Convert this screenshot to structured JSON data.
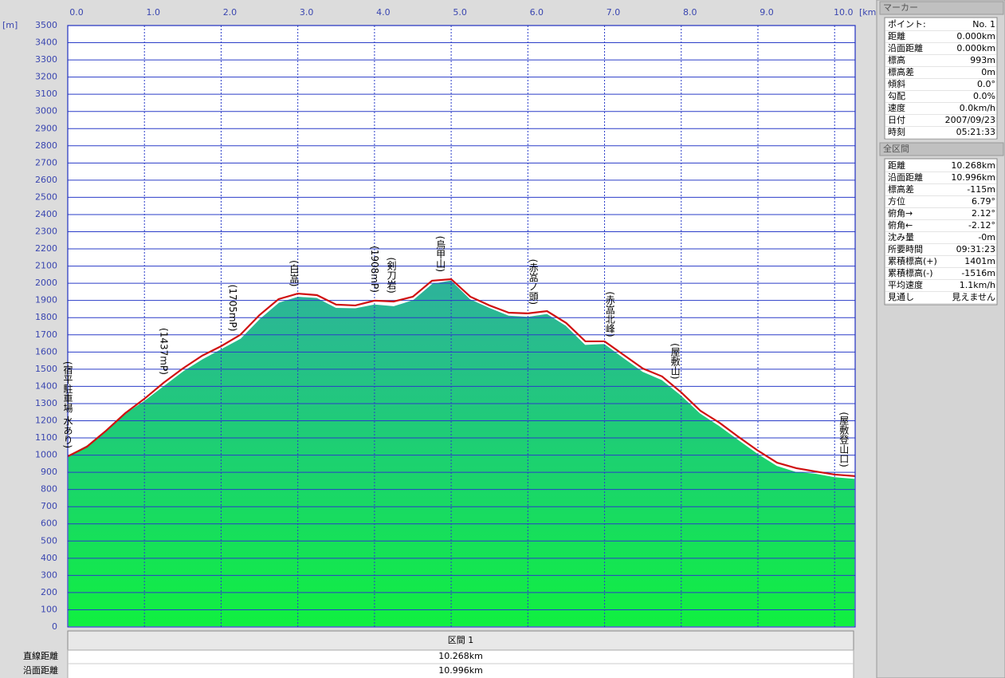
{
  "chart_data": {
    "type": "area",
    "x_unit": "[km]",
    "y_unit": "[m]",
    "x": [
      0,
      0.25,
      0.5,
      0.75,
      1.0,
      1.25,
      1.5,
      1.75,
      2.0,
      2.25,
      2.5,
      2.75,
      3.0,
      3.25,
      3.5,
      3.75,
      4.0,
      4.25,
      4.5,
      4.75,
      5.0,
      5.25,
      5.5,
      5.75,
      6.0,
      6.25,
      6.5,
      6.75,
      7.0,
      7.25,
      7.5,
      7.75,
      8.0,
      8.25,
      8.5,
      8.75,
      9.0,
      9.25,
      9.5,
      9.75,
      10.0,
      10.268
    ],
    "series": [
      {
        "color": "#2db39a",
        "values": [
          1000,
          1060,
          1150,
          1245,
          1320,
          1405,
          1490,
          1560,
          1620,
          1680,
          1795,
          1890,
          1925,
          1918,
          1860,
          1858,
          1880,
          1870,
          1905,
          2000,
          2020,
          1910,
          1860,
          1815,
          1808,
          1825,
          1755,
          1645,
          1650,
          1568,
          1488,
          1440,
          1350,
          1245,
          1172,
          1090,
          1010,
          940,
          905,
          895,
          875,
          865
        ]
      },
      {
        "color": "#d01010",
        "values": [
          993,
          1049,
          1142,
          1244,
          1328,
          1421,
          1504,
          1578,
          1634,
          1700,
          1815,
          1908,
          1940,
          1931,
          1876,
          1871,
          1899,
          1894,
          1922,
          2015,
          2024,
          1922,
          1871,
          1829,
          1825,
          1838,
          1769,
          1662,
          1662,
          1583,
          1504,
          1458,
          1365,
          1258,
          1188,
          1105,
          1026,
          956,
          924,
          905,
          887,
          878
        ]
      }
    ],
    "xlim": [
      0,
      10.268
    ],
    "xticks": [
      {
        "value": 0,
        "label": "0.0"
      },
      {
        "value": 1,
        "label": "1.0"
      },
      {
        "value": 2,
        "label": "2.0"
      },
      {
        "value": 3,
        "label": "3.0"
      },
      {
        "value": 4,
        "label": "4.0"
      },
      {
        "value": 5,
        "label": "5.0"
      },
      {
        "value": 6,
        "label": "6.0"
      },
      {
        "value": 7,
        "label": "7.0"
      },
      {
        "value": 8,
        "label": "8.0"
      },
      {
        "value": 9,
        "label": "9.0"
      },
      {
        "value": 10,
        "label": "10.0"
      }
    ],
    "ylim": [
      0,
      3500
    ],
    "yticks": [
      0,
      100,
      200,
      300,
      400,
      500,
      600,
      700,
      800,
      900,
      1000,
      1100,
      1200,
      1300,
      1400,
      1500,
      1600,
      1700,
      1800,
      1900,
      2000,
      2100,
      2200,
      2300,
      2400,
      2500,
      2600,
      2700,
      2800,
      2900,
      3000,
      3100,
      3200,
      3300,
      3400,
      3500
    ],
    "grid": true,
    "annotations": [
      {
        "text": "(宿平駐車場 水あり)",
        "x": 0
      },
      {
        "text": "(1437mP)",
        "x": 1.25
      },
      {
        "text": "(1705mP)",
        "x": 2.15
      },
      {
        "text": "(白嵓)",
        "x": 2.95
      },
      {
        "text": "(1908mP)",
        "x": 4.0
      },
      {
        "text": "(剣刀岩)",
        "x": 4.22
      },
      {
        "text": "(烏甲山)",
        "x": 4.86
      },
      {
        "text": "(赤嵓ノ頭)",
        "x": 6.07
      },
      {
        "text": "(赤嵓北峰)",
        "x": 7.07
      },
      {
        "text": "(屋敷山)",
        "x": 7.92
      },
      {
        "text": "(屋敷登山口)",
        "x": 10.12
      }
    ]
  },
  "marker_panel": {
    "title": "マーカー",
    "rows": [
      [
        "ポイント:",
        "No. 1"
      ],
      [
        "距離",
        "0.000km"
      ],
      [
        "沿面距離",
        "0.000km"
      ],
      [
        "標高",
        "993m"
      ],
      [
        "標高差",
        "0m"
      ],
      [
        "傾斜",
        "0.0°"
      ],
      [
        "勾配",
        "0.0%"
      ],
      [
        "速度",
        "0.0km/h"
      ],
      [
        "日付",
        "2007/09/23"
      ],
      [
        "時刻",
        "05:21:33"
      ]
    ]
  },
  "total_panel": {
    "title": "全区間",
    "rows": [
      [
        "距離",
        "10.268km"
      ],
      [
        "沿面距離",
        "10.996km"
      ],
      [
        "標高差",
        "-115m"
      ],
      [
        "方位",
        "6.79°"
      ],
      [
        "俯角→",
        "2.12°"
      ],
      [
        "俯角←",
        "-2.12°"
      ],
      [
        "沈み量",
        "-0m"
      ],
      [
        "所要時間",
        "09:31:23"
      ],
      [
        "累積標高(+)",
        "1401m"
      ],
      [
        "累積標高(-)",
        "-1516m"
      ],
      [
        "平均速度",
        "1.1km/h"
      ],
      [
        "見通し",
        "見えません"
      ]
    ]
  },
  "section_table": {
    "header": "区間 1",
    "rows": [
      [
        "直線距離",
        "10.268km"
      ],
      [
        "沿面距離",
        "10.996km"
      ]
    ]
  }
}
